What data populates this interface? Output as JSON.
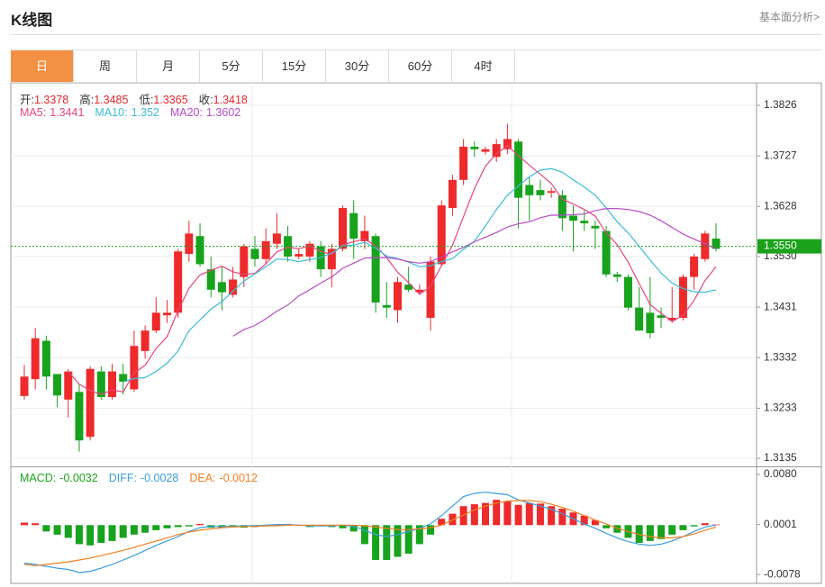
{
  "header": {
    "title": "K线图",
    "link": "基本面分析>"
  },
  "tabs": [
    "日",
    "周",
    "月",
    "5分",
    "15分",
    "30分",
    "60分",
    "4时"
  ],
  "active_tab": 0,
  "chart_data": [
    {
      "type": "candlestick",
      "info": [
        {
          "label": "开:",
          "value": 1.3378
        },
        {
          "label": "高:",
          "value": 1.3485
        },
        {
          "label": "低:",
          "value": 1.3365
        },
        {
          "label": "收:",
          "value": 1.3418
        }
      ],
      "info_value_color": "#e8262a",
      "up_color": "#ee2a2a",
      "down_color": "#17a31d",
      "open": [
        1.3257,
        1.329,
        1.3365,
        1.33,
        1.325,
        1.3265,
        1.3177,
        1.3305,
        1.3255,
        1.33,
        1.327,
        1.3345,
        1.3385,
        1.3415,
        1.342,
        1.3535,
        1.357,
        1.3505,
        1.348,
        1.3455,
        1.349,
        1.3545,
        1.3525,
        1.3555,
        1.357,
        1.353,
        1.353,
        1.355,
        1.3505,
        1.3545,
        1.3615,
        1.356,
        1.357,
        1.3435,
        1.3425,
        1.3475,
        1.346,
        1.341,
        1.3515,
        1.3625,
        1.368,
        1.3745,
        1.3735,
        1.3725,
        1.374,
        1.3755,
        1.367,
        1.366,
        1.3655,
        1.365,
        1.361,
        1.36,
        1.359,
        1.358,
        1.3495,
        1.349,
        1.343,
        1.342,
        1.3415,
        1.3405,
        1.341,
        1.349,
        1.3525,
        1.3565
      ],
      "high": [
        1.3318,
        1.339,
        1.3375,
        1.33,
        1.331,
        1.328,
        1.3315,
        1.3315,
        1.332,
        1.332,
        1.3385,
        1.3395,
        1.345,
        1.3445,
        1.3545,
        1.36,
        1.3595,
        1.353,
        1.351,
        1.351,
        1.3555,
        1.357,
        1.3585,
        1.3615,
        1.359,
        1.3545,
        1.356,
        1.356,
        1.3555,
        1.363,
        1.364,
        1.361,
        1.3575,
        1.348,
        1.349,
        1.351,
        1.3475,
        1.353,
        1.364,
        1.369,
        1.376,
        1.3755,
        1.3745,
        1.376,
        1.379,
        1.376,
        1.3685,
        1.368,
        1.3665,
        1.366,
        1.363,
        1.362,
        1.36,
        1.359,
        1.35,
        1.3495,
        1.347,
        1.349,
        1.343,
        1.347,
        1.3495,
        1.3535,
        1.358,
        1.3595
      ],
      "low": [
        1.325,
        1.327,
        1.327,
        1.3235,
        1.3215,
        1.3148,
        1.317,
        1.325,
        1.325,
        1.326,
        1.3265,
        1.333,
        1.338,
        1.34,
        1.341,
        1.352,
        1.351,
        1.345,
        1.3425,
        1.345,
        1.347,
        1.351,
        1.3515,
        1.3545,
        1.352,
        1.3525,
        1.352,
        1.349,
        1.347,
        1.354,
        1.3525,
        1.3545,
        1.342,
        1.341,
        1.34,
        1.346,
        1.3455,
        1.3385,
        1.351,
        1.361,
        1.367,
        1.3725,
        1.373,
        1.3715,
        1.373,
        1.3585,
        1.36,
        1.364,
        1.3645,
        1.358,
        1.354,
        1.358,
        1.3545,
        1.349,
        1.348,
        1.3425,
        1.3385,
        1.337,
        1.339,
        1.34,
        1.3405,
        1.3465,
        1.352,
        1.354
      ],
      "close": [
        1.3295,
        1.337,
        1.3295,
        1.3258,
        1.3305,
        1.317,
        1.331,
        1.3255,
        1.3305,
        1.3285,
        1.3355,
        1.3385,
        1.342,
        1.342,
        1.354,
        1.3575,
        1.3515,
        1.3465,
        1.346,
        1.3485,
        1.355,
        1.3525,
        1.356,
        1.3575,
        1.353,
        1.3535,
        1.3555,
        1.3505,
        1.3545,
        1.3625,
        1.3565,
        1.358,
        1.344,
        1.343,
        1.348,
        1.3465,
        1.3465,
        1.352,
        1.363,
        1.368,
        1.3745,
        1.374,
        1.374,
        1.375,
        1.376,
        1.3645,
        1.365,
        1.365,
        1.3658,
        1.3605,
        1.36,
        1.3595,
        1.3585,
        1.3495,
        1.349,
        1.343,
        1.3385,
        1.338,
        1.341,
        1.341,
        1.349,
        1.353,
        1.3575,
        1.3545
      ],
      "series": [
        {
          "name": "MA5:",
          "current": 1.3441,
          "color": "#e8457d",
          "values": [
            null,
            null,
            null,
            null,
            1.3305,
            1.328,
            1.3268,
            1.326,
            1.3269,
            1.3265,
            1.3302,
            1.3317,
            1.335,
            1.3373,
            1.3424,
            1.3468,
            1.3494,
            1.3503,
            1.3511,
            1.35,
            1.3495,
            1.3497,
            1.3516,
            1.3539,
            1.3548,
            1.3545,
            1.3551,
            1.354,
            1.3534,
            1.3553,
            1.3559,
            1.3564,
            1.3551,
            1.3528,
            1.3499,
            1.3479,
            1.3456,
            1.3472,
            1.3512,
            1.3552,
            1.3608,
            1.3663,
            1.3707,
            1.3731,
            1.3747,
            1.3727,
            1.3709,
            1.3691,
            1.3673,
            1.3642,
            1.3633,
            1.3622,
            1.3609,
            1.3576,
            1.3553,
            1.3519,
            1.3477,
            1.3436,
            1.3419,
            1.3403,
            1.3415,
            1.3444,
            1.3483,
            1.351
          ]
        },
        {
          "name": "MA10:",
          "current": 1.352,
          "color": "#3cbcd8",
          "values": [
            null,
            null,
            null,
            null,
            null,
            null,
            null,
            null,
            null,
            1.3285,
            1.3291,
            1.3293,
            1.3305,
            1.3321,
            1.3345,
            1.3385,
            1.3406,
            1.3427,
            1.3442,
            1.3462,
            1.3482,
            1.3496,
            1.351,
            1.3525,
            1.3524,
            1.352,
            1.3524,
            1.3528,
            1.3537,
            1.3551,
            1.3552,
            1.3558,
            1.3546,
            1.3531,
            1.3526,
            1.3519,
            1.351,
            1.3512,
            1.352,
            1.3526,
            1.3544,
            1.356,
            1.359,
            1.3622,
            1.365,
            1.3668,
            1.3686,
            1.3699,
            1.3702,
            1.3695,
            1.368,
            1.3666,
            1.365,
            1.3625,
            1.3598,
            1.3576,
            1.355,
            1.3523,
            1.3498,
            1.3478,
            1.3467,
            1.3461,
            1.346,
            1.3465
          ]
        },
        {
          "name": "MA20:",
          "current": 1.3602,
          "color": "#b84cc8",
          "values": [
            null,
            null,
            null,
            null,
            null,
            null,
            null,
            null,
            null,
            null,
            null,
            null,
            null,
            null,
            null,
            null,
            null,
            null,
            null,
            1.3374,
            1.3387,
            1.3395,
            1.3408,
            1.3423,
            1.3435,
            1.3453,
            1.3465,
            1.3478,
            1.349,
            1.3507,
            1.3517,
            1.3527,
            1.3528,
            1.3528,
            1.3525,
            1.352,
            1.3517,
            1.352,
            1.3529,
            1.3539,
            1.3548,
            1.3559,
            1.3568,
            1.3577,
            1.3588,
            1.3594,
            1.3598,
            1.3606,
            1.3611,
            1.3611,
            1.3612,
            1.3613,
            1.362,
            1.3624,
            1.3624,
            1.3622,
            1.3618,
            1.3611,
            1.36,
            1.3587,
            1.3574,
            1.3564,
            1.3555,
            1.3545
          ]
        }
      ],
      "ylim": [
        1.3121,
        1.387
      ],
      "yticks": [
        1.3826,
        1.3727,
        1.3628,
        {
          "value": 1.353,
          "label": "1.3530"
        },
        1.3431,
        1.3332,
        1.3233,
        1.3135
      ],
      "grid": true,
      "last_price": {
        "value": 1.355,
        "label": "1.3550",
        "color": "#1aa31a"
      }
    },
    {
      "type": "macd",
      "series": [
        {
          "name": "MACD:",
          "current": -0.0032,
          "color": "#1aa31a",
          "up_color": "#ee2a2a",
          "down_color": "#17a31d",
          "values": [
            0.0004,
            0.0003,
            -0.001,
            -0.0015,
            -0.002,
            -0.003,
            -0.0032,
            -0.0028,
            -0.0025,
            -0.002,
            -0.0015,
            -0.0012,
            -0.0008,
            -0.0005,
            -0.0003,
            -0.0002,
            0.0002,
            -0.0004,
            -0.0004,
            -0.0003,
            -0.0004,
            -0.0003,
            -0.0002,
            0.0001,
            0.0002,
            -0.0001,
            -0.0003,
            -0.0002,
            -0.0003,
            -0.0005,
            -0.001,
            -0.003,
            -0.0055,
            -0.0055,
            -0.005,
            -0.0045,
            -0.003,
            -0.0015,
            0.001,
            0.0018,
            0.003,
            0.0033,
            0.0035,
            0.004,
            0.0038,
            0.0032,
            0.0035,
            0.0034,
            0.003,
            0.0026,
            0.002,
            0.0015,
            0.0008,
            -0.0005,
            -0.0012,
            -0.002,
            -0.0028,
            -0.0025,
            -0.0022,
            -0.0015,
            -0.0008,
            -0.0002,
            0.0003,
            0.0001
          ]
        },
        {
          "name": "DIFF:",
          "current": -0.0028,
          "color": "#3a9ee0",
          "values": [
            -0.006,
            -0.0062,
            -0.0065,
            -0.0068,
            -0.007,
            -0.0075,
            -0.0073,
            -0.0068,
            -0.0062,
            -0.0055,
            -0.0048,
            -0.004,
            -0.0032,
            -0.0025,
            -0.0018,
            -0.001,
            -0.0004,
            -0.0002,
            -0.0002,
            -0.0002,
            -0.0001,
            -0.0001,
            0.0,
            0.0001,
            0.0001,
            0.0,
            -0.0001,
            -0.0001,
            -0.0001,
            0.0,
            -0.0002,
            -0.0008,
            -0.0015,
            -0.0018,
            -0.0015,
            -0.001,
            -0.0005,
            0.0002,
            0.0015,
            0.003,
            0.0045,
            0.005,
            0.0052,
            0.005,
            0.0048,
            0.004,
            0.0035,
            0.003,
            0.0025,
            0.0018,
            0.001,
            0.0002,
            -0.0005,
            -0.0013,
            -0.002,
            -0.0026,
            -0.003,
            -0.0032,
            -0.003,
            -0.0025,
            -0.0018,
            -0.001,
            -0.0003,
            0.0
          ]
        },
        {
          "name": "DEA:",
          "current": -0.0012,
          "color": "#f08020",
          "values": [
            -0.0062,
            -0.0064,
            -0.0062,
            -0.006,
            -0.0058,
            -0.0055,
            -0.0052,
            -0.0048,
            -0.0044,
            -0.004,
            -0.0035,
            -0.003,
            -0.0025,
            -0.002,
            -0.0015,
            -0.0011,
            -0.0008,
            -0.0006,
            -0.0004,
            -0.0003,
            -0.0002,
            -0.0002,
            -0.0001,
            -0.0001,
            0.0,
            0.0,
            0.0,
            0.0,
            0.0,
            0.0,
            0.0,
            -0.0001,
            -0.0003,
            -0.0005,
            -0.0007,
            -0.0007,
            -0.0006,
            -0.0004,
            0.0,
            0.0008,
            0.0016,
            0.0024,
            0.003,
            0.0035,
            0.0038,
            0.0039,
            0.0039,
            0.0037,
            0.0033,
            0.0028,
            0.0022,
            0.0015,
            0.0008,
            0.0002,
            -0.0005,
            -0.001,
            -0.0015,
            -0.0018,
            -0.002,
            -0.002,
            -0.0018,
            -0.0014,
            -0.0008,
            -0.0003
          ]
        }
      ],
      "ylim": [
        -0.0092,
        0.009
      ],
      "yticks": [
        {
          "value": 0.008,
          "label": "0.0080"
        },
        0.0001,
        -0.0078
      ]
    }
  ]
}
